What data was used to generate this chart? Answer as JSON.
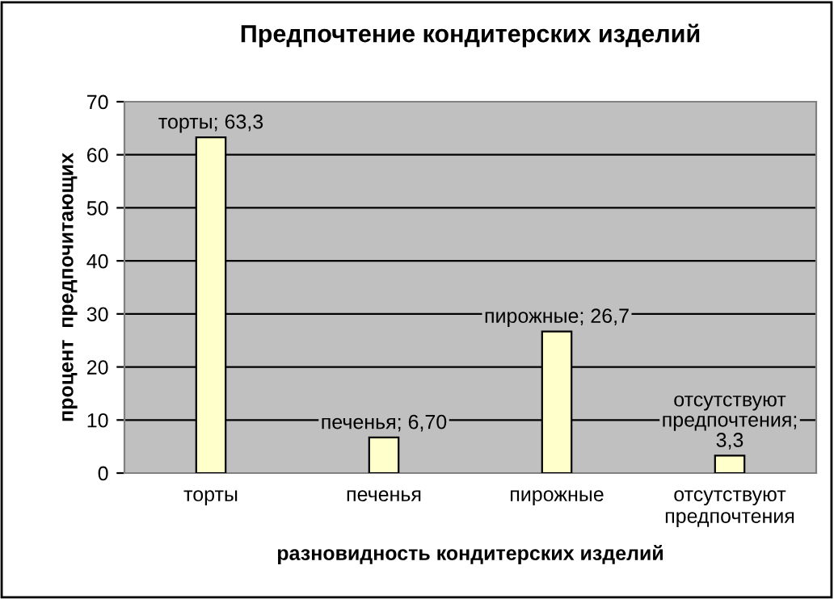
{
  "chart_data": {
    "type": "bar",
    "title": "Предпочтение кондитерских изделий",
    "xlabel": "разновидность кондитерских изделий",
    "ylabel": "процент  предпочитающих",
    "categories": [
      "торты",
      "печенья",
      "пирожные",
      "отсутствуют предпочтения"
    ],
    "values": [
      63.3,
      6.7,
      26.7,
      3.3
    ],
    "value_labels": [
      "торты; 63,3",
      "печенья; 6,70",
      "пирожные; 26,7",
      "отсутствуют предпочтения; 3,3"
    ],
    "color": "#ffffcc",
    "ylim": [
      0,
      70
    ],
    "yticks": [
      0,
      10,
      20,
      30,
      40,
      50,
      60,
      70
    ],
    "grid": "y",
    "legend": false
  }
}
